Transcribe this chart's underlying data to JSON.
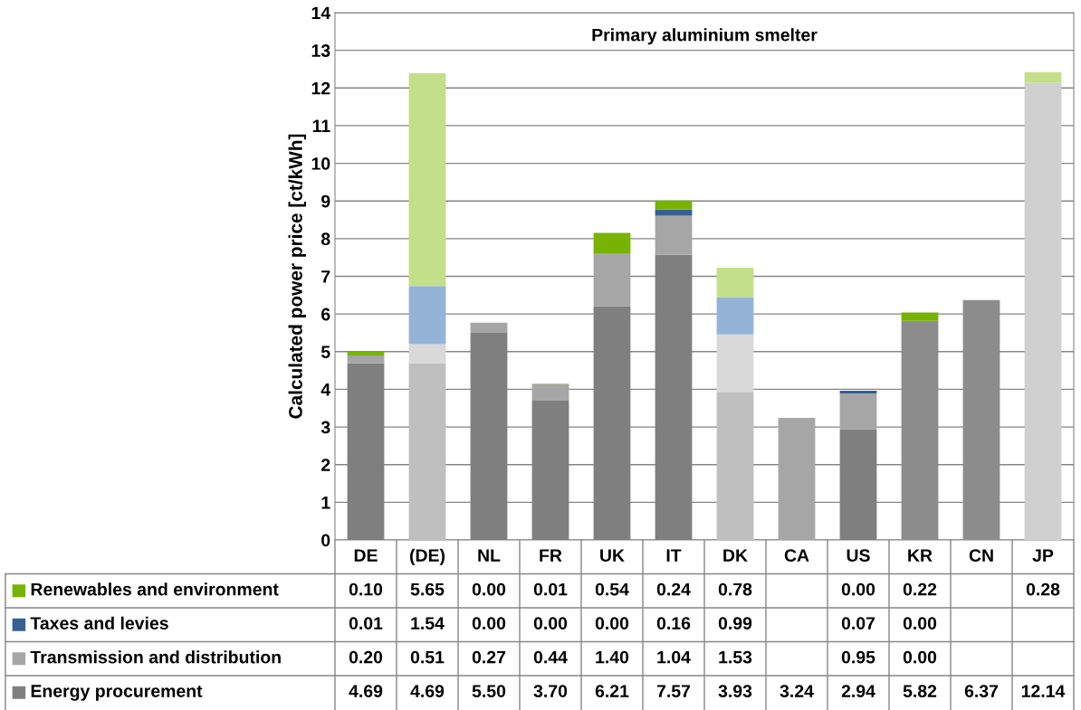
{
  "chart_data": {
    "type": "bar",
    "stacked": true,
    "title": "Primary aluminium smelter",
    "ylabel": "Calculated power price [ct/kWh]",
    "categories": [
      "DE",
      "(DE)",
      "NL",
      "FR",
      "UK",
      "IT",
      "DK",
      "CA",
      "US",
      "KR",
      "CN",
      "JP"
    ],
    "ylim": [
      0,
      14
    ],
    "yticks": [
      0,
      1,
      2,
      3,
      4,
      5,
      6,
      7,
      8,
      9,
      10,
      11,
      12,
      13,
      14
    ],
    "grid": "y",
    "legend": "bottom left",
    "series": [
      {
        "name": "Energy procurement",
        "color": "#7f7f7f",
        "colors": [
          "#7f7f7f",
          "#bfbfbf",
          "#7f7f7f",
          "#7f7f7f",
          "#7f7f7f",
          "#7f7f7f",
          "#bfbfbf",
          "#a6a6a6",
          "#7f7f7f",
          "#8c8c8c",
          "#8c8c8c",
          "#d0d0d0"
        ],
        "values": [
          4.69,
          4.69,
          5.5,
          3.7,
          6.21,
          7.57,
          3.93,
          3.24,
          2.94,
          5.82,
          6.37,
          12.14
        ],
        "value_labels": [
          "4.69",
          "4.69",
          "5.50",
          "3.70",
          "6.21",
          "7.57",
          "3.93",
          "3.24",
          "2.94",
          "5.82",
          "6.37",
          "12.14"
        ]
      },
      {
        "name": "Transmission and distribution",
        "color": "#a6a6a6",
        "colors": [
          "#a6a6a6",
          "#d9d9d9",
          "#a6a6a6",
          "#a6a6a6",
          "#a6a6a6",
          "#a6a6a6",
          "#d9d9d9",
          "#a6a6a6",
          "#a6a6a6",
          "#a6a6a6",
          "#a6a6a6",
          "#a6a6a6"
        ],
        "values": [
          0.2,
          0.51,
          0.27,
          0.44,
          1.4,
          1.04,
          1.53,
          null,
          0.95,
          0.0,
          null,
          null
        ],
        "value_labels": [
          "0.20",
          "0.51",
          "0.27",
          "0.44",
          "1.40",
          "1.04",
          "1.53",
          null,
          "0.95",
          "0.00",
          null,
          null
        ]
      },
      {
        "name": "Taxes and levies",
        "color": "#376092",
        "colors": [
          "#376092",
          "#95b3d7",
          "#376092",
          "#376092",
          "#376092",
          "#376092",
          "#95b3d7",
          "#376092",
          "#376092",
          "#376092",
          "#376092",
          "#376092"
        ],
        "values": [
          0.01,
          1.54,
          0.0,
          0.0,
          0.0,
          0.16,
          0.99,
          null,
          0.07,
          0.0,
          null,
          null
        ],
        "value_labels": [
          "0.01",
          "1.54",
          "0.00",
          "0.00",
          "0.00",
          "0.16",
          "0.99",
          null,
          "0.07",
          "0.00",
          null,
          null
        ]
      },
      {
        "name": "Renewables and environment",
        "color": "#77b300",
        "colors": [
          "#77b300",
          "#c3df8a",
          "#77b300",
          "#77b300",
          "#77b300",
          "#77b300",
          "#c3df8a",
          "#77b300",
          "#77b300",
          "#77b300",
          "#77b300",
          "#c3df8a"
        ],
        "values": [
          0.1,
          5.65,
          0.0,
          0.01,
          0.54,
          0.24,
          0.78,
          null,
          0.0,
          0.22,
          null,
          0.28
        ],
        "value_labels": [
          "0.10",
          "5.65",
          "0.00",
          "0.01",
          "0.54",
          "0.24",
          "0.78",
          null,
          "0.00",
          "0.22",
          null,
          "0.28"
        ]
      }
    ]
  }
}
